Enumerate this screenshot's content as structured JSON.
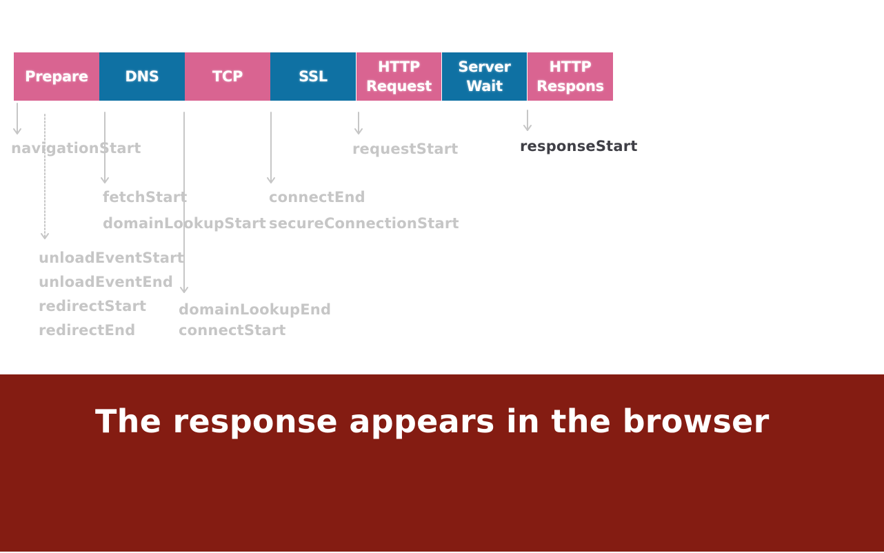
{
  "phases": [
    {
      "label": "Prepare",
      "color": "#d96491"
    },
    {
      "label": "DNS",
      "color": "#0f71a3"
    },
    {
      "label": "TCP",
      "color": "#d96491"
    },
    {
      "label": "SSL",
      "color": "#0f71a3"
    },
    {
      "label": "HTTP\nRequest",
      "color": "#d96491"
    },
    {
      "label": "Server\nWait",
      "color": "#0f71a3"
    },
    {
      "label": "HTTP\nRespons",
      "color": "#d96491"
    }
  ],
  "events": {
    "navigationStart": "navigationStart",
    "fetchStart": "fetchStart",
    "domainLookupStart": "domainLookupStart",
    "unloadEventStart": "unloadEventStart",
    "unloadEventEnd": "unloadEventEnd",
    "redirectStart": "redirectStart",
    "redirectEnd": "redirectEnd",
    "domainLookupEnd": "domainLookupEnd",
    "connectStart": "connectStart",
    "connectEnd": "connectEnd",
    "secureConnectionStart": "secureConnectionStart",
    "requestStart": "requestStart",
    "responseStart": "responseStart"
  },
  "highlighted_event": "responseStart",
  "colors": {
    "muted_label": "#c6c6c6",
    "active_label": "#3f3f46",
    "banner": "#841c12"
  },
  "banner": {
    "caption": "The response appears in the browser"
  }
}
